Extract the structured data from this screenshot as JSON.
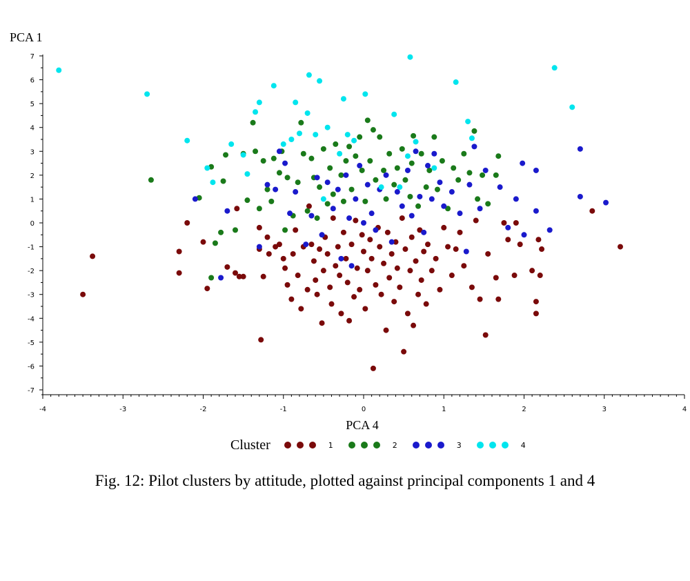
{
  "chart_data": {
    "type": "scatter",
    "xlabel": "PCA 4",
    "ylabel": "PCA 1",
    "xlim": [
      -4,
      4
    ],
    "ylim": [
      -7,
      7
    ],
    "x_ticks": [
      "-4",
      "-3",
      "-2",
      "-1",
      "0",
      "1",
      "2",
      "3",
      "4"
    ],
    "y_ticks": [
      "-7",
      "-6",
      "-5",
      "-4",
      "-3",
      "-2",
      "-1",
      "0",
      "1",
      "2",
      "3",
      "4",
      "5",
      "6",
      "7"
    ],
    "grid": false,
    "legend": {
      "title": "Cluster",
      "placement": "bottom"
    },
    "series": [
      {
        "name": "1",
        "color": "#7a0a0a",
        "points": [
          [
            -3.5,
            -3.0
          ],
          [
            -3.38,
            -1.4
          ],
          [
            -2.3,
            -2.1
          ],
          [
            -2.3,
            -1.2
          ],
          [
            -2.2,
            0.0
          ],
          [
            -2.0,
            -0.8
          ],
          [
            -1.95,
            -2.75
          ],
          [
            -1.7,
            -1.85
          ],
          [
            -1.6,
            -2.1
          ],
          [
            -1.55,
            -2.25
          ],
          [
            -1.5,
            -2.25
          ],
          [
            -1.58,
            0.6
          ],
          [
            -1.3,
            -0.2
          ],
          [
            -1.3,
            -1.1
          ],
          [
            -1.28,
            -4.9
          ],
          [
            -1.25,
            -2.25
          ],
          [
            -1.2,
            -0.6
          ],
          [
            -1.18,
            -1.3
          ],
          [
            -1.1,
            -1.0
          ],
          [
            -1.05,
            -0.9
          ],
          [
            -1.0,
            -1.5
          ],
          [
            -0.98,
            -1.9
          ],
          [
            -0.95,
            -2.6
          ],
          [
            -0.9,
            -3.2
          ],
          [
            -0.88,
            -1.3
          ],
          [
            -0.85,
            -0.3
          ],
          [
            -0.82,
            -2.2
          ],
          [
            -0.78,
            -3.6
          ],
          [
            -0.75,
            -1.0
          ],
          [
            -0.7,
            -2.8
          ],
          [
            -0.68,
            0.7
          ],
          [
            -0.65,
            -0.9
          ],
          [
            -0.62,
            -1.6
          ],
          [
            -0.6,
            -2.4
          ],
          [
            -0.58,
            -3.0
          ],
          [
            -0.55,
            -1.1
          ],
          [
            -0.52,
            -4.2
          ],
          [
            -0.5,
            -2.0
          ],
          [
            -0.48,
            -0.6
          ],
          [
            -0.45,
            -1.3
          ],
          [
            -0.42,
            -2.7
          ],
          [
            -0.4,
            -3.4
          ],
          [
            -0.38,
            0.2
          ],
          [
            -0.35,
            -1.8
          ],
          [
            -0.32,
            -1.0
          ],
          [
            -0.3,
            -2.2
          ],
          [
            -0.28,
            -3.8
          ],
          [
            -0.25,
            -0.4
          ],
          [
            -0.22,
            -1.5
          ],
          [
            -0.2,
            -2.5
          ],
          [
            -0.18,
            -4.1
          ],
          [
            -0.15,
            -0.9
          ],
          [
            -0.12,
            -3.1
          ],
          [
            -0.1,
            0.1
          ],
          [
            -0.08,
            -1.9
          ],
          [
            -0.05,
            -2.8
          ],
          [
            -0.02,
            -0.5
          ],
          [
            0.0,
            -1.2
          ],
          [
            0.02,
            -3.6
          ],
          [
            0.05,
            -2.0
          ],
          [
            0.08,
            -0.7
          ],
          [
            0.1,
            -1.5
          ],
          [
            0.12,
            -6.1
          ],
          [
            0.15,
            -2.6
          ],
          [
            0.18,
            -0.2
          ],
          [
            0.2,
            -1.0
          ],
          [
            0.22,
            -3.0
          ],
          [
            0.25,
            -1.7
          ],
          [
            0.28,
            -4.5
          ],
          [
            0.3,
            -0.4
          ],
          [
            0.32,
            -2.3
          ],
          [
            0.35,
            -1.3
          ],
          [
            0.38,
            -3.3
          ],
          [
            0.4,
            -0.8
          ],
          [
            0.42,
            -1.9
          ],
          [
            0.45,
            -2.7
          ],
          [
            0.48,
            0.2
          ],
          [
            0.5,
            -5.4
          ],
          [
            0.52,
            -1.1
          ],
          [
            0.55,
            -3.8
          ],
          [
            0.58,
            -2.0
          ],
          [
            0.6,
            -0.6
          ],
          [
            0.62,
            -4.3
          ],
          [
            0.65,
            -1.6
          ],
          [
            0.68,
            -3.0
          ],
          [
            0.7,
            -0.3
          ],
          [
            0.72,
            -2.4
          ],
          [
            0.75,
            -1.2
          ],
          [
            0.78,
            -3.4
          ],
          [
            0.8,
            -0.9
          ],
          [
            0.85,
            -2.0
          ],
          [
            0.9,
            -1.5
          ],
          [
            0.95,
            -2.8
          ],
          [
            1.0,
            -0.2
          ],
          [
            1.05,
            -1.0
          ],
          [
            1.1,
            -2.2
          ],
          [
            1.15,
            -1.1
          ],
          [
            1.2,
            -0.4
          ],
          [
            1.25,
            -1.8
          ],
          [
            1.35,
            -2.7
          ],
          [
            1.4,
            0.1
          ],
          [
            1.45,
            -3.2
          ],
          [
            1.52,
            -4.7
          ],
          [
            1.55,
            -1.3
          ],
          [
            1.65,
            -2.3
          ],
          [
            1.68,
            -3.2
          ],
          [
            1.75,
            0.0
          ],
          [
            1.8,
            -0.7
          ],
          [
            1.88,
            -2.2
          ],
          [
            1.9,
            0.0
          ],
          [
            1.95,
            -0.9
          ],
          [
            2.1,
            -2.0
          ],
          [
            2.15,
            -3.3
          ],
          [
            2.15,
            -3.8
          ],
          [
            2.18,
            -0.7
          ],
          [
            2.2,
            -2.2
          ],
          [
            2.22,
            -1.1
          ],
          [
            2.85,
            0.5
          ],
          [
            3.2,
            -1.0
          ]
        ]
      },
      {
        "name": "2",
        "color": "#1a7a1a",
        "points": [
          [
            -2.65,
            1.8
          ],
          [
            -2.05,
            1.05
          ],
          [
            -1.9,
            2.35
          ],
          [
            -1.9,
            -2.3
          ],
          [
            -1.85,
            -0.85
          ],
          [
            -1.78,
            -0.4
          ],
          [
            -1.75,
            1.75
          ],
          [
            -1.72,
            2.85
          ],
          [
            -1.6,
            -0.3
          ],
          [
            -1.5,
            2.9
          ],
          [
            -1.45,
            0.95
          ],
          [
            -1.38,
            4.2
          ],
          [
            -1.35,
            3.0
          ],
          [
            -1.3,
            0.6
          ],
          [
            -1.25,
            2.6
          ],
          [
            -1.2,
            1.4
          ],
          [
            -1.15,
            0.9
          ],
          [
            -1.12,
            2.7
          ],
          [
            -1.05,
            2.1
          ],
          [
            -1.02,
            3.0
          ],
          [
            -0.98,
            -0.3
          ],
          [
            -0.95,
            1.9
          ],
          [
            -0.88,
            0.3
          ],
          [
            -0.82,
            1.7
          ],
          [
            -0.78,
            4.2
          ],
          [
            -0.75,
            2.9
          ],
          [
            -0.7,
            0.5
          ],
          [
            -0.65,
            2.7
          ],
          [
            -0.62,
            1.9
          ],
          [
            -0.58,
            0.2
          ],
          [
            -0.55,
            1.5
          ],
          [
            -0.5,
            3.1
          ],
          [
            -0.45,
            0.8
          ],
          [
            -0.42,
            2.3
          ],
          [
            -0.38,
            1.2
          ],
          [
            -0.35,
            3.3
          ],
          [
            -0.28,
            2.0
          ],
          [
            -0.25,
            0.9
          ],
          [
            -0.22,
            2.6
          ],
          [
            -0.18,
            3.2
          ],
          [
            -0.15,
            1.4
          ],
          [
            -0.1,
            2.8
          ],
          [
            -0.05,
            3.6
          ],
          [
            -0.02,
            2.2
          ],
          [
            0.02,
            0.9
          ],
          [
            0.05,
            4.3
          ],
          [
            0.08,
            2.6
          ],
          [
            0.12,
            3.9
          ],
          [
            0.15,
            1.8
          ],
          [
            0.2,
            3.6
          ],
          [
            0.25,
            2.2
          ],
          [
            0.28,
            1.0
          ],
          [
            0.32,
            2.9
          ],
          [
            0.38,
            1.6
          ],
          [
            0.42,
            2.3
          ],
          [
            0.48,
            3.1
          ],
          [
            0.52,
            1.8
          ],
          [
            0.58,
            1.1
          ],
          [
            0.6,
            2.5
          ],
          [
            0.62,
            3.65
          ],
          [
            0.68,
            0.7
          ],
          [
            0.72,
            2.9
          ],
          [
            0.78,
            1.5
          ],
          [
            0.82,
            2.2
          ],
          [
            0.88,
            3.6
          ],
          [
            0.92,
            1.4
          ],
          [
            0.98,
            2.6
          ],
          [
            1.05,
            0.6
          ],
          [
            1.12,
            2.3
          ],
          [
            1.18,
            1.8
          ],
          [
            1.25,
            2.9
          ],
          [
            1.32,
            2.1
          ],
          [
            1.38,
            3.85
          ],
          [
            1.42,
            1.0
          ],
          [
            1.48,
            2.0
          ],
          [
            1.55,
            0.8
          ],
          [
            1.65,
            2.0
          ],
          [
            1.68,
            2.8
          ]
        ]
      },
      {
        "name": "3",
        "color": "#1a1acc",
        "points": [
          [
            -2.1,
            1.0
          ],
          [
            -1.78,
            -2.3
          ],
          [
            -1.7,
            0.5
          ],
          [
            -1.3,
            -1.0
          ],
          [
            -1.2,
            1.6
          ],
          [
            -1.1,
            1.4
          ],
          [
            -1.05,
            3.0
          ],
          [
            -0.98,
            2.5
          ],
          [
            -0.92,
            0.4
          ],
          [
            -0.85,
            1.3
          ],
          [
            -0.72,
            -0.9
          ],
          [
            -0.65,
            0.3
          ],
          [
            -0.58,
            1.9
          ],
          [
            -0.52,
            -0.5
          ],
          [
            -0.45,
            1.7
          ],
          [
            -0.38,
            0.6
          ],
          [
            -0.32,
            1.4
          ],
          [
            -0.28,
            -1.5
          ],
          [
            -0.22,
            2.0
          ],
          [
            -0.18,
            0.2
          ],
          [
            -0.15,
            -1.8
          ],
          [
            -0.1,
            1.0
          ],
          [
            -0.05,
            2.4
          ],
          [
            0.0,
            0.0
          ],
          [
            0.05,
            1.6
          ],
          [
            0.1,
            0.4
          ],
          [
            0.15,
            -0.3
          ],
          [
            0.2,
            1.4
          ],
          [
            0.28,
            2.0
          ],
          [
            0.35,
            -0.8
          ],
          [
            0.42,
            1.3
          ],
          [
            0.48,
            0.7
          ],
          [
            0.55,
            2.2
          ],
          [
            0.6,
            0.3
          ],
          [
            0.65,
            3.0
          ],
          [
            0.7,
            1.1
          ],
          [
            0.75,
            -0.4
          ],
          [
            0.8,
            2.4
          ],
          [
            0.85,
            1.0
          ],
          [
            0.88,
            2.9
          ],
          [
            0.95,
            1.7
          ],
          [
            1.0,
            0.7
          ],
          [
            1.1,
            1.3
          ],
          [
            1.2,
            0.4
          ],
          [
            1.28,
            -1.2
          ],
          [
            1.32,
            1.6
          ],
          [
            1.38,
            3.2
          ],
          [
            1.45,
            0.6
          ],
          [
            1.52,
            2.2
          ],
          [
            1.7,
            1.5
          ],
          [
            1.8,
            -0.2
          ],
          [
            1.9,
            1.0
          ],
          [
            1.98,
            2.5
          ],
          [
            2.0,
            -0.5
          ],
          [
            2.15,
            2.2
          ],
          [
            2.15,
            0.5
          ],
          [
            2.32,
            -0.3
          ],
          [
            2.7,
            1.1
          ],
          [
            2.7,
            3.1
          ],
          [
            3.02,
            0.85
          ]
        ]
      },
      {
        "name": "4",
        "color": "#00e5ee",
        "points": [
          [
            -3.8,
            6.4
          ],
          [
            -2.7,
            5.4
          ],
          [
            -2.2,
            3.45
          ],
          [
            -1.95,
            2.3
          ],
          [
            -1.88,
            1.7
          ],
          [
            -1.65,
            3.3
          ],
          [
            -1.5,
            2.85
          ],
          [
            -1.45,
            2.05
          ],
          [
            -1.35,
            4.65
          ],
          [
            -1.3,
            5.05
          ],
          [
            -1.12,
            5.75
          ],
          [
            -1.0,
            3.3
          ],
          [
            -0.9,
            3.5
          ],
          [
            -0.85,
            5.05
          ],
          [
            -0.8,
            3.75
          ],
          [
            -0.7,
            4.6
          ],
          [
            -0.68,
            6.2
          ],
          [
            -0.6,
            3.7
          ],
          [
            -0.55,
            5.95
          ],
          [
            -0.5,
            1.0
          ],
          [
            -0.45,
            4.0
          ],
          [
            -0.3,
            2.9
          ],
          [
            -0.25,
            5.2
          ],
          [
            -0.2,
            3.7
          ],
          [
            -0.12,
            3.45
          ],
          [
            0.02,
            5.4
          ],
          [
            0.22,
            1.5
          ],
          [
            0.38,
            4.55
          ],
          [
            0.45,
            1.5
          ],
          [
            0.55,
            2.8
          ],
          [
            0.58,
            6.95
          ],
          [
            0.65,
            3.4
          ],
          [
            0.88,
            2.3
          ],
          [
            1.15,
            5.9
          ],
          [
            1.3,
            4.25
          ],
          [
            1.35,
            3.55
          ],
          [
            2.38,
            6.5
          ],
          [
            2.6,
            4.85
          ]
        ]
      }
    ]
  },
  "caption": "Fig. 12: Pilot clusters by attitude, plotted against principal components 1 and 4"
}
